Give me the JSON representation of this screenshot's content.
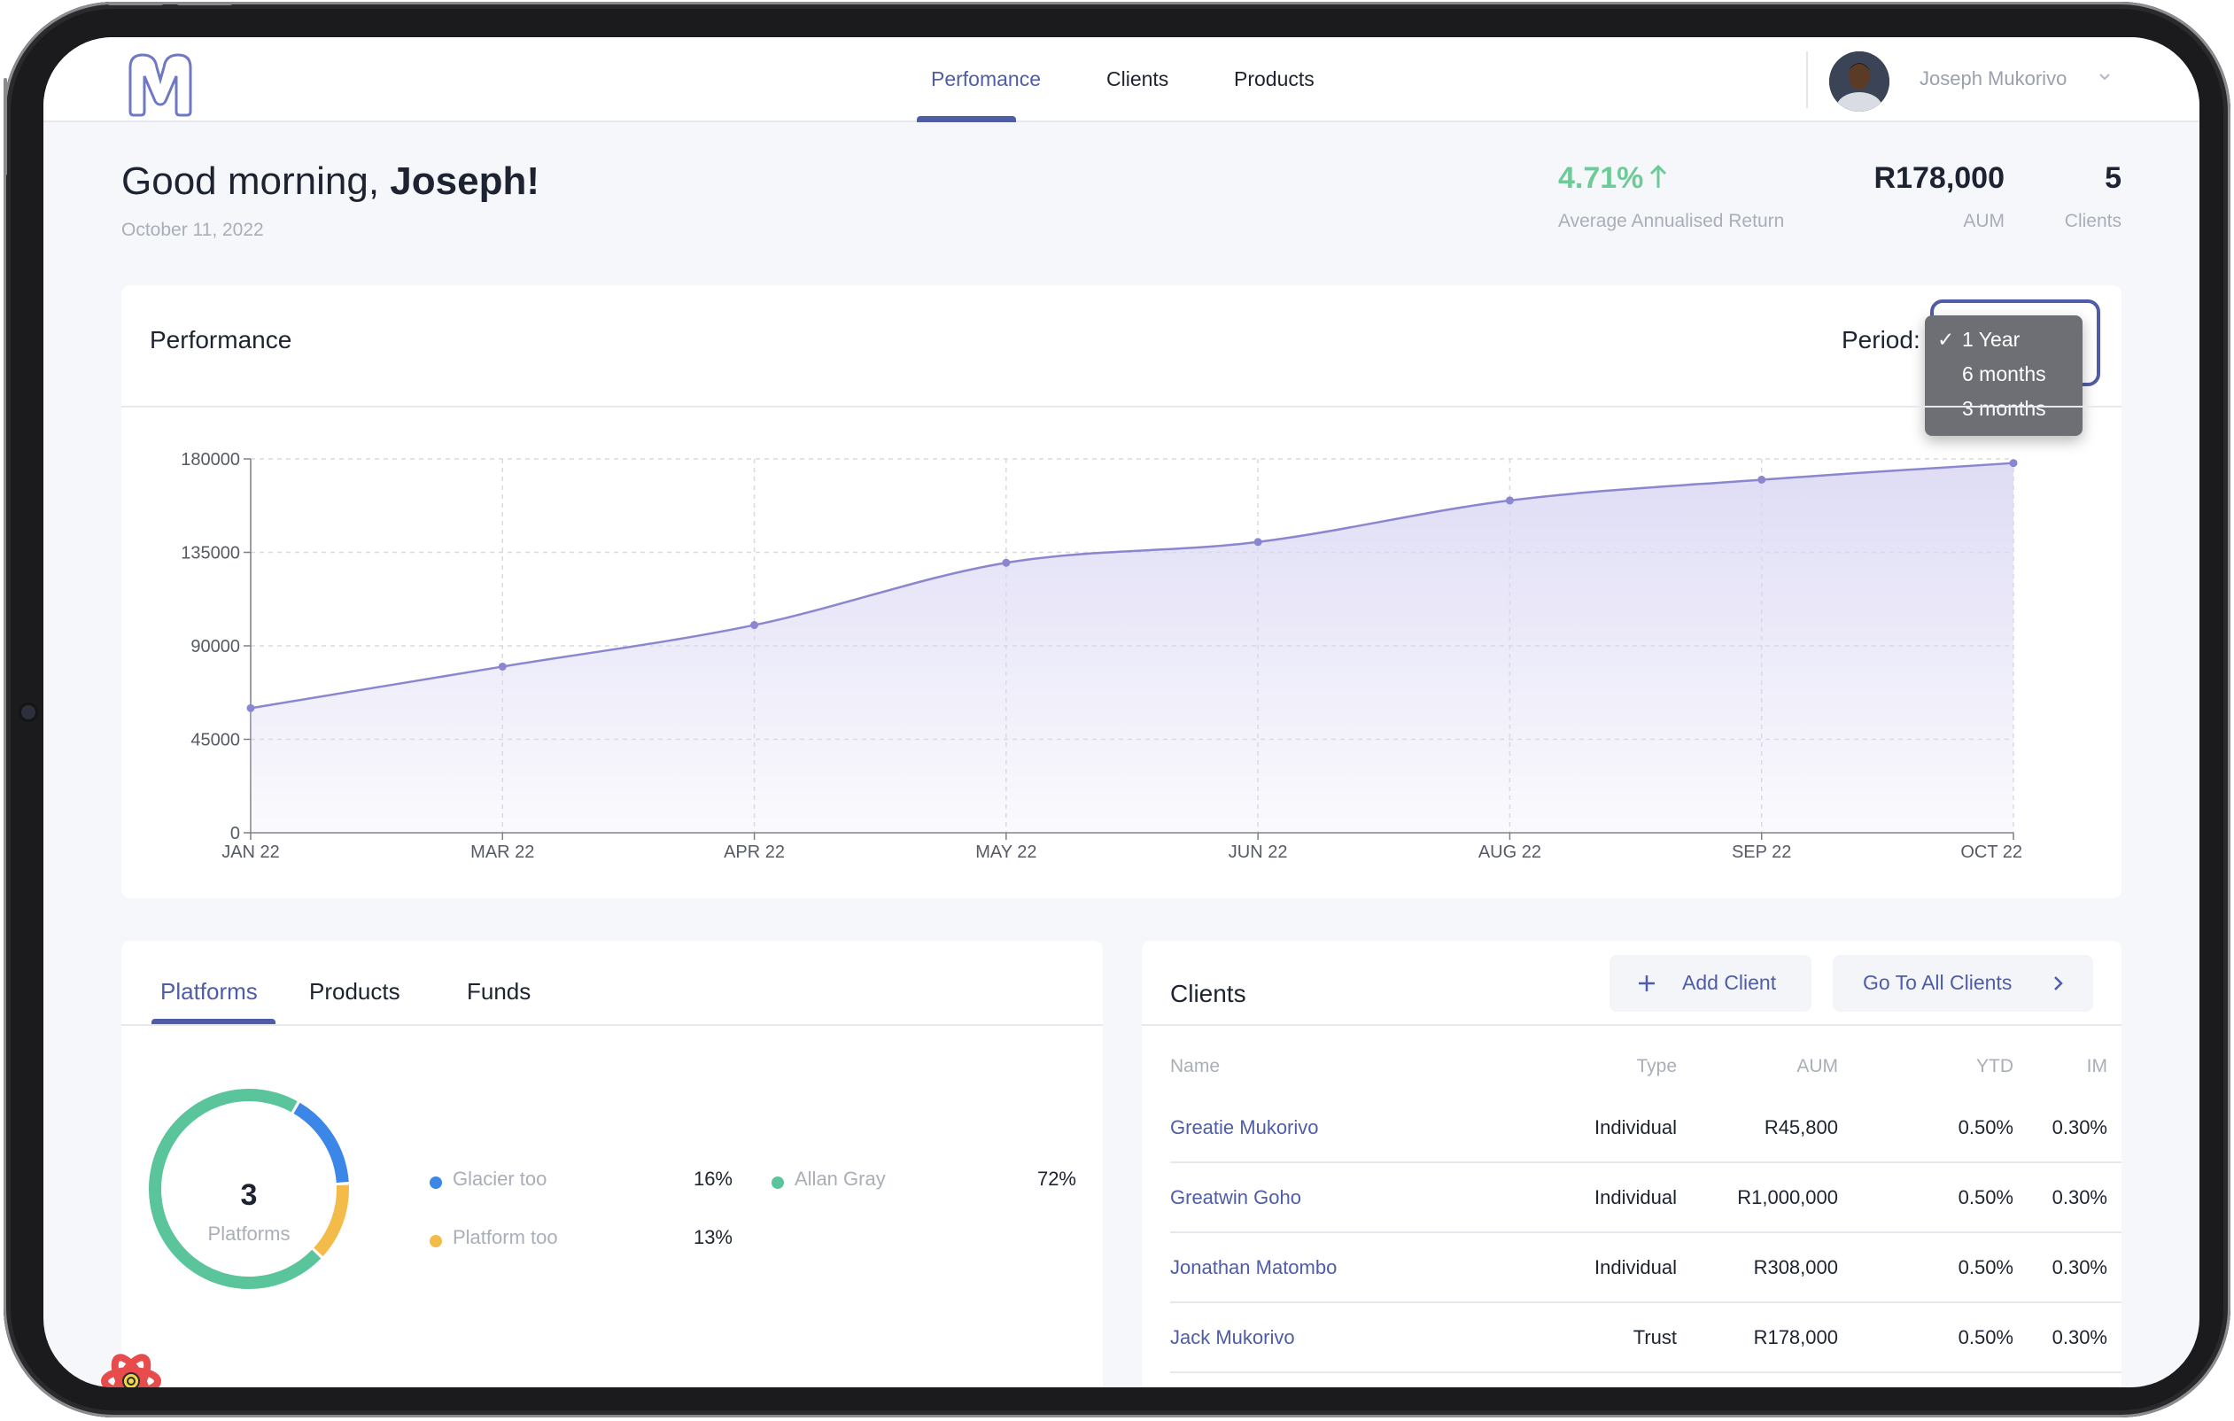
{
  "nav": {
    "items": [
      {
        "label": "Perfomance",
        "active": true
      },
      {
        "label": "Clients",
        "active": false
      },
      {
        "label": "Products",
        "active": false
      }
    ]
  },
  "user": {
    "name": "Joseph Mukorivo"
  },
  "greeting": {
    "prefix": "Good morning, ",
    "name": "Joseph!",
    "date": "October 11, 2022"
  },
  "stats": [
    {
      "value": "4.71%",
      "label": "Average Annualised Return",
      "color": "#6dcb97",
      "trend": "up"
    },
    {
      "value": "R178,000",
      "label": "AUM"
    },
    {
      "value": "5",
      "label": "Clients"
    }
  ],
  "performance": {
    "title": "Performance",
    "period_label": "Period:",
    "period_options": [
      {
        "label": "1 Year",
        "selected": true
      },
      {
        "label": "6 months",
        "selected": false
      },
      {
        "label": "3 months",
        "selected": false
      }
    ],
    "check_glyph": "✓"
  },
  "chart_data": {
    "type": "area",
    "categories": [
      "JAN 22",
      "MAR 22",
      "APR 22",
      "MAY 22",
      "JUN 22",
      "AUG 22",
      "SEP 22",
      "OCT 22"
    ],
    "series": [
      {
        "values": [
          60000,
          80000,
          100000,
          130000,
          140000,
          160000,
          170000,
          178000
        ]
      }
    ],
    "yticks": [
      0,
      45000,
      90000,
      135000,
      180000
    ],
    "ylim": [
      0,
      180000
    ],
    "grid": true,
    "colors": {
      "line": "#8a86cf",
      "fill": "#d9d6f3"
    }
  },
  "platforms_tabs": [
    {
      "label": "Platforms",
      "active": true
    },
    {
      "label": "Products",
      "active": false
    },
    {
      "label": "Funds",
      "active": false
    }
  ],
  "platforms": {
    "count": "3",
    "count_label": "Platforms",
    "items": [
      {
        "name": "Glacier too",
        "percent": "16%",
        "value": 16,
        "color": "#3c86e8"
      },
      {
        "name": "Platform too",
        "percent": "13%",
        "value": 13,
        "color": "#f2bb4a"
      },
      {
        "name": "Allan Gray",
        "percent": "72%",
        "value": 72,
        "color": "#5ac49b"
      }
    ]
  },
  "clients": {
    "title": "Clients",
    "add_label": "Add Client",
    "all_label": "Go To All Clients",
    "columns": [
      "Name",
      "Type",
      "AUM",
      "YTD",
      "IM"
    ],
    "rows": [
      {
        "name": "Greatie Mukorivo",
        "type": "Individual",
        "aum": "R45,800",
        "ytd": "0.50%",
        "im": "0.30%"
      },
      {
        "name": "Greatwin Goho",
        "type": "Individual",
        "aum": "R1,000,000",
        "ytd": "0.50%",
        "im": "0.30%"
      },
      {
        "name": "Jonathan Matombo",
        "type": "Individual",
        "aum": "R308,000",
        "ytd": "0.50%",
        "im": "0.30%"
      },
      {
        "name": "Jack Mukorivo",
        "type": "Trust",
        "aum": "R178,000",
        "ytd": "0.50%",
        "im": "0.30%"
      }
    ]
  },
  "accent_color": "#4f5ca8"
}
